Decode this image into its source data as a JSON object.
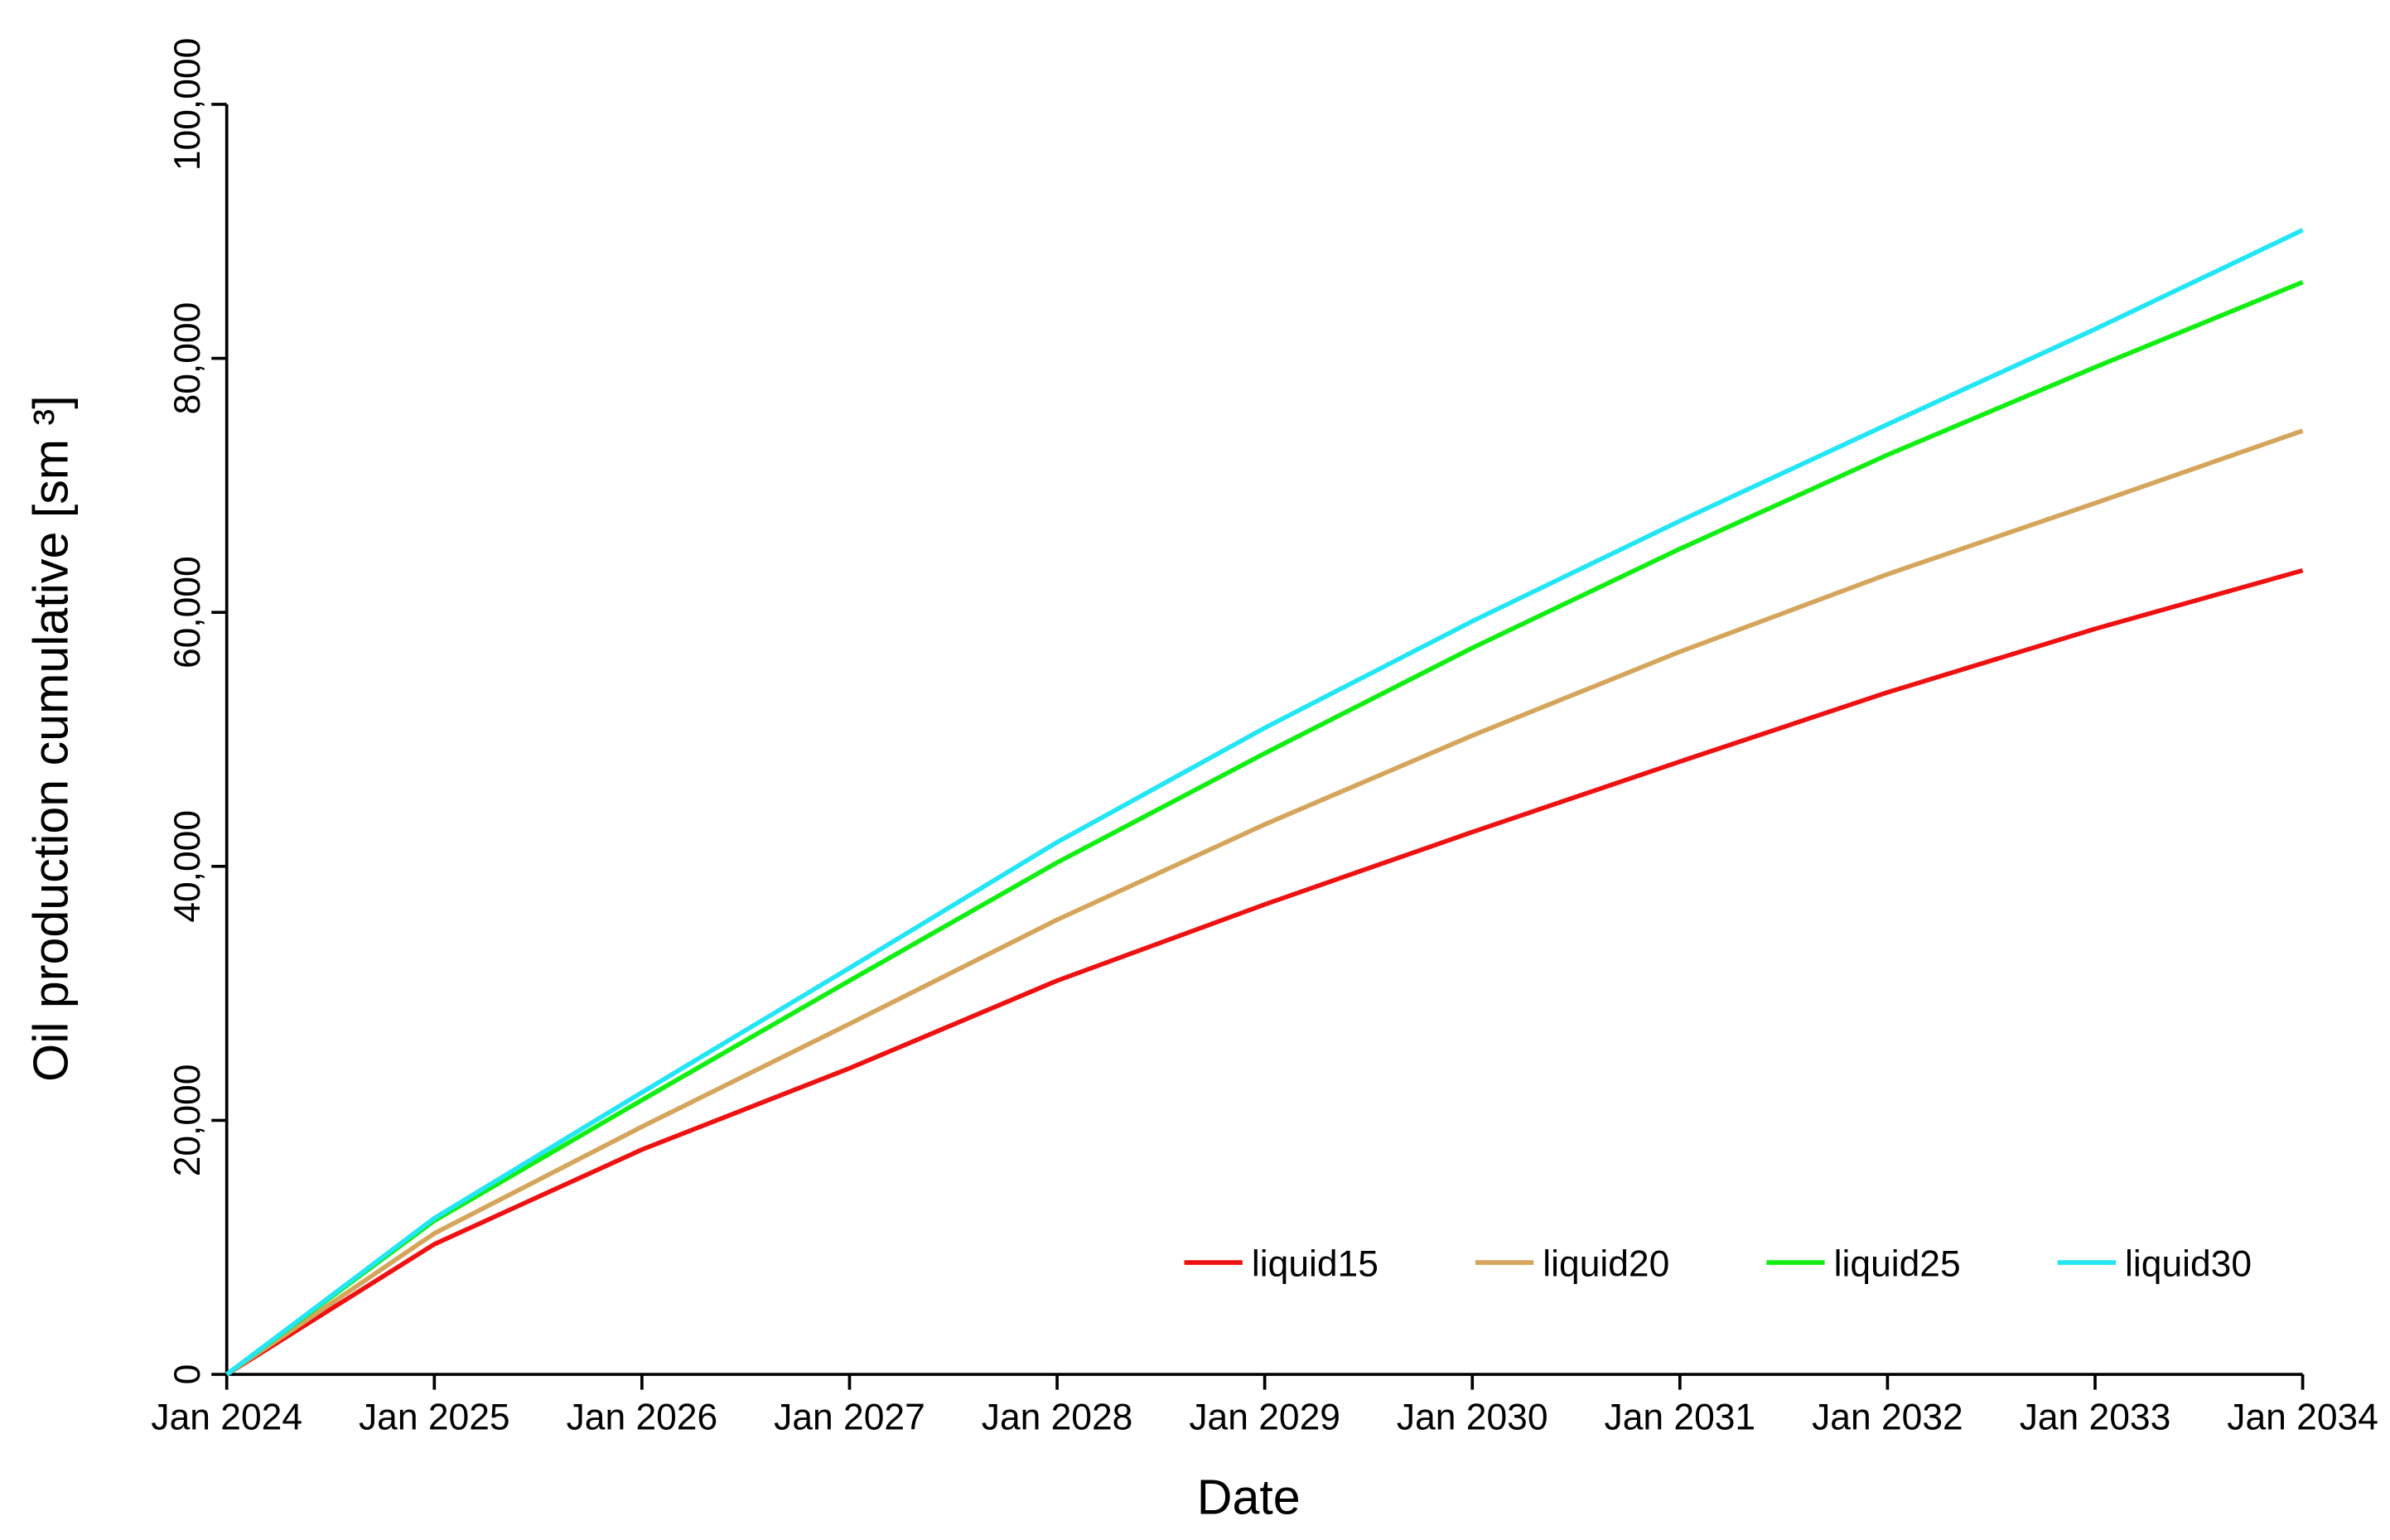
{
  "chart_data": {
    "type": "line",
    "x_label": "Date",
    "y_label": "Oil production cumulative [sm ³]",
    "x": [
      2024,
      2025,
      2026,
      2027,
      2028,
      2029,
      2030,
      2031,
      2032,
      2033,
      2034
    ],
    "series": [
      {
        "name": "liquid15",
        "color": "#ee1111",
        "values": [
          0,
          10250,
          17700,
          24100,
          31000,
          37000,
          42700,
          48250,
          53700,
          58700,
          63300
        ]
      },
      {
        "name": "liquid20",
        "color": "#d4a55a",
        "values": [
          0,
          11100,
          19500,
          27600,
          35800,
          43300,
          50300,
          56900,
          63000,
          68600,
          74300
        ]
      },
      {
        "name": "liquid25",
        "color": "#11ee11",
        "values": [
          0,
          12100,
          21600,
          31000,
          40300,
          48900,
          57200,
          65000,
          72400,
          79300,
          86000
        ]
      },
      {
        "name": "liquid30",
        "color": "#22e5f5",
        "values": [
          0,
          12300,
          22200,
          32000,
          41900,
          50900,
          59300,
          67200,
          74800,
          82300,
          90100
        ]
      }
    ],
    "xlim": [
      2024,
      2034
    ],
    "xticks": [
      {
        "value": 2024,
        "label": "Jan 2024"
      },
      {
        "value": 2025,
        "label": "Jan 2025"
      },
      {
        "value": 2026,
        "label": "Jan 2026"
      },
      {
        "value": 2027,
        "label": "Jan 2027"
      },
      {
        "value": 2028,
        "label": "Jan 2028"
      },
      {
        "value": 2029,
        "label": "Jan 2029"
      },
      {
        "value": 2030,
        "label": "Jan 2030"
      },
      {
        "value": 2031,
        "label": "Jan 2031"
      },
      {
        "value": 2032,
        "label": "Jan 2032"
      },
      {
        "value": 2033,
        "label": "Jan 2033"
      },
      {
        "value": 2034,
        "label": "Jan 2034"
      }
    ],
    "ylim": [
      0,
      100000
    ],
    "yticks": [
      0,
      {
        "value": 20000,
        "label": "20,000"
      },
      {
        "value": 40000,
        "label": "40,000"
      },
      {
        "value": 60000,
        "label": "60,000"
      },
      {
        "value": 80000,
        "label": "80,000"
      },
      {
        "value": 100000,
        "label": "100,000"
      }
    ],
    "grid": false,
    "legend": "bottom-right"
  }
}
